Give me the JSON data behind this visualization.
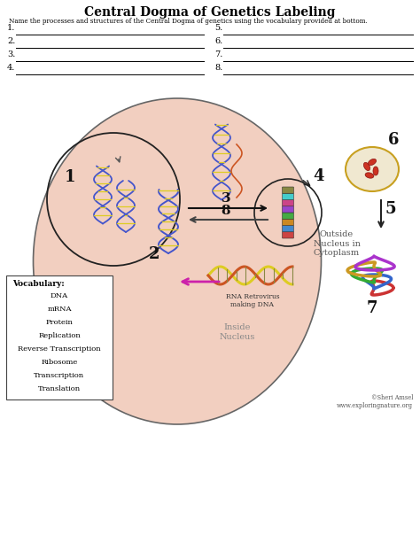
{
  "title": "Central Dogma of Genetics Labeling",
  "subtitle": "Name the processes and structures of the Central Dogma of genetics using the vocabulary provided at bottom.",
  "background_color": "#ffffff",
  "cell_fill": "#f2cfc0",
  "numbered_lines_left": [
    "1.",
    "2.",
    "3.",
    "4."
  ],
  "numbered_lines_right": [
    "5.",
    "6.",
    "7.",
    "8."
  ],
  "vocabulary_header": "Vocabulary:",
  "vocabulary": [
    "DNA",
    "mRNA",
    "Protein",
    "Replication",
    "Reverse Transcription",
    "Ribosome",
    "Transcription",
    "Translation"
  ],
  "label_inside": "Inside\nNucleus",
  "label_outside": "Outside\nNucleus in\nCytoplasm",
  "label_retrovirus": "RNA Retrovirus\nmaking DNA",
  "copyright": "©Sheri Amsel\nwww.exploringnature.org",
  "fig_w": 4.74,
  "fig_h": 6.13,
  "dpi": 100
}
